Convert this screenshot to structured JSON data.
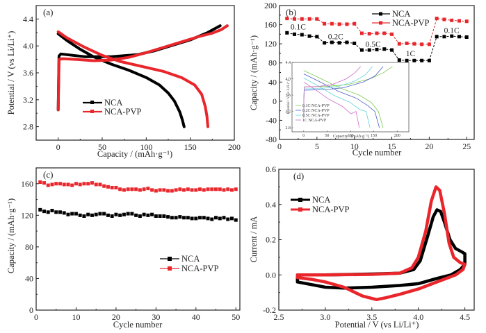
{
  "colors": {
    "NCA": "#000000",
    "NCA-PVP": "#e8262b",
    "inset": [
      "#7fc950",
      "#4a5cc4",
      "#63d3e0",
      "#cc6fc6"
    ]
  },
  "chart_data": [
    {
      "panel": "(a)",
      "type": "line",
      "title": "",
      "xlabel": "Capacity / (mAh·g⁻¹)",
      "ylabel": "Potential / V (vs Li/Li⁺)",
      "xlim": [
        -25,
        200
      ],
      "ylim": [
        2.6,
        4.6
      ],
      "xticks": [
        0,
        50,
        100,
        150,
        200
      ],
      "yticks": [
        2.8,
        3.2,
        3.6,
        4.0,
        4.4
      ],
      "legend": {
        "position": "lower-left",
        "entries": [
          "NCA",
          "NCA-PVP"
        ]
      },
      "series": [
        {
          "name": "NCA",
          "segment": "charge",
          "points": [
            [
              0,
              3.05
            ],
            [
              0.5,
              3.5
            ],
            [
              1,
              3.85
            ],
            [
              3,
              3.88
            ],
            [
              10,
              3.87
            ],
            [
              30,
              3.84
            ],
            [
              60,
              3.84
            ],
            [
              90,
              3.87
            ],
            [
              110,
              3.93
            ],
            [
              130,
              4.01
            ],
            [
              150,
              4.09
            ],
            [
              170,
              4.2
            ],
            [
              184,
              4.3
            ]
          ]
        },
        {
          "name": "NCA",
          "segment": "discharge",
          "points": [
            [
              0,
              4.18
            ],
            [
              10,
              4.08
            ],
            [
              25,
              3.95
            ],
            [
              40,
              3.84
            ],
            [
              60,
              3.73
            ],
            [
              80,
              3.64
            ],
            [
              100,
              3.53
            ],
            [
              115,
              3.42
            ],
            [
              125,
              3.3
            ],
            [
              132,
              3.18
            ],
            [
              138,
              3.02
            ],
            [
              141,
              2.9
            ],
            [
              143,
              2.8
            ]
          ]
        },
        {
          "name": "NCA-PVP",
          "segment": "charge",
          "points": [
            [
              0,
              3.05
            ],
            [
              0.5,
              3.4
            ],
            [
              1,
              3.8
            ],
            [
              5,
              3.81
            ],
            [
              20,
              3.8
            ],
            [
              40,
              3.78
            ],
            [
              60,
              3.79
            ],
            [
              80,
              3.83
            ],
            [
              100,
              3.9
            ],
            [
              120,
              3.98
            ],
            [
              140,
              4.06
            ],
            [
              160,
              4.14
            ],
            [
              175,
              4.19
            ],
            [
              185,
              4.24
            ],
            [
              192,
              4.3
            ]
          ]
        },
        {
          "name": "NCA-PVP",
          "segment": "discharge",
          "points": [
            [
              0,
              4.21
            ],
            [
              10,
              4.12
            ],
            [
              30,
              3.98
            ],
            [
              50,
              3.86
            ],
            [
              70,
              3.77
            ],
            [
              100,
              3.68
            ],
            [
              120,
              3.62
            ],
            [
              140,
              3.53
            ],
            [
              155,
              3.42
            ],
            [
              163,
              3.28
            ],
            [
              167,
              3.1
            ],
            [
              169,
              2.95
            ],
            [
              170,
              2.8
            ]
          ]
        }
      ]
    },
    {
      "panel": "(b)",
      "type": "line",
      "xlabel": "Cycle number",
      "ylabel": "Capacity / (mAh·g⁻¹)",
      "xlim": [
        0,
        26
      ],
      "ylim": [
        -80,
        200
      ],
      "xticks": [
        0,
        5,
        10,
        15,
        20,
        25
      ],
      "yticks": [
        -80,
        -40,
        0,
        40,
        80,
        120,
        160,
        200
      ],
      "legend": {
        "position": "top-right",
        "entries": [
          "NCA",
          "NCA-PVP"
        ]
      },
      "annotations": [
        {
          "text": "0.1C",
          "x": 2.5,
          "y": 150
        },
        {
          "text": "0.2C",
          "x": 7.5,
          "y": 130
        },
        {
          "text": "0.5C",
          "x": 12.5,
          "y": 114
        },
        {
          "text": "1C",
          "x": 17.5,
          "y": 94
        },
        {
          "text": "0.1C",
          "x": 23,
          "y": 143
        }
      ],
      "x": [
        1,
        2,
        3,
        4,
        5,
        6,
        7,
        8,
        9,
        10,
        11,
        12,
        13,
        14,
        15,
        16,
        17,
        18,
        19,
        20,
        21,
        22,
        23,
        24,
        25
      ],
      "series": [
        {
          "name": "NCA",
          "values": [
            143,
            140,
            139,
            136,
            135,
            122,
            123,
            122,
            123,
            121,
            107,
            107,
            108,
            109,
            107,
            86,
            85,
            85,
            85,
            85,
            135,
            135,
            136,
            135,
            134
          ]
        },
        {
          "name": "NCA-PVP",
          "values": [
            173,
            172,
            172,
            172,
            172,
            162,
            162,
            161,
            161,
            162,
            142,
            141,
            142,
            142,
            140,
            120,
            121,
            120,
            119,
            119,
            173,
            171,
            169,
            168,
            167
          ]
        }
      ],
      "inset": {
        "type": "line",
        "xlabel": "Capacity / (mAh·g⁻¹)",
        "ylabel": "Potential / V (vs Li/Li⁺)",
        "xlim": [
          -25,
          225
        ],
        "ylim": [
          2.7,
          4.4
        ],
        "xticks": [
          0,
          50,
          100,
          150,
          200
        ],
        "yticks": [
          2.8,
          3.2,
          3.6,
          4.0,
          4.4
        ],
        "legend": {
          "position": "lower-left",
          "entries": [
            "0.1C NCA-PVP",
            "0.2C NCA-PVP",
            "0.5C NCA-PVP",
            "1C NCA-PVP"
          ]
        },
        "series": [
          {
            "name": "0.1C NCA-PVP",
            "charge_end": 190,
            "discharge_end": 170,
            "plateau": 3.8,
            "disc_start": 4.2
          },
          {
            "name": "0.2C NCA-PVP",
            "charge_end": 170,
            "discharge_end": 162,
            "plateau": 3.72,
            "disc_start": 4.12
          },
          {
            "name": "0.5C NCA-PVP",
            "charge_end": 147,
            "discharge_end": 142,
            "plateau": 3.75,
            "disc_start": 4.02
          },
          {
            "name": "1C NCA-PVP",
            "charge_end": 122,
            "discharge_end": 119,
            "plateau": 3.8,
            "disc_start": 3.92
          }
        ]
      }
    },
    {
      "panel": "(c)",
      "type": "line",
      "xlabel": "Cycle number",
      "ylabel": "Capacity / (mAh·g⁻¹)",
      "xlim": [
        0,
        51
      ],
      "ylim": [
        0,
        180
      ],
      "xticks": [
        0,
        10,
        20,
        30,
        40,
        50
      ],
      "yticks": [
        0,
        40,
        80,
        120,
        160
      ],
      "legend": {
        "position": "center-right",
        "entries": [
          "NCA",
          "NCA-PVP"
        ]
      },
      "x": [
        1,
        2,
        3,
        4,
        5,
        6,
        7,
        8,
        9,
        10,
        11,
        12,
        13,
        14,
        15,
        16,
        17,
        18,
        19,
        20,
        21,
        22,
        23,
        24,
        25,
        26,
        27,
        28,
        29,
        30,
        31,
        32,
        33,
        34,
        35,
        36,
        37,
        38,
        39,
        40,
        41,
        42,
        43,
        44,
        45,
        46,
        47,
        48,
        49,
        50
      ],
      "series": [
        {
          "name": "NCA",
          "values": [
            127,
            125,
            124,
            126,
            124,
            124,
            123,
            121,
            122,
            122,
            120,
            119,
            121,
            120,
            121,
            122,
            122,
            120,
            119,
            121,
            120,
            121,
            122,
            122,
            120,
            119,
            121,
            120,
            121,
            119,
            119,
            119,
            118,
            117,
            117,
            118,
            117,
            117,
            116,
            116,
            117,
            117,
            116,
            115,
            117,
            116,
            117,
            115,
            116,
            114
          ]
        },
        {
          "name": "NCA-PVP",
          "values": [
            162,
            161,
            158,
            159,
            160,
            160,
            159,
            159,
            158,
            160,
            159,
            160,
            160,
            161,
            159,
            159,
            157,
            156,
            155,
            155,
            153,
            152,
            153,
            153,
            153,
            152,
            153,
            154,
            152,
            151,
            152,
            152,
            151,
            151,
            152,
            153,
            152,
            153,
            152,
            152,
            153,
            152,
            153,
            153,
            153,
            153,
            152,
            153,
            152,
            153
          ]
        }
      ]
    },
    {
      "panel": "(d)",
      "type": "line",
      "xlabel": "Potential / V (vs Li/Li⁺)",
      "ylabel": "Current / mA",
      "xlim": [
        2.5,
        4.6
      ],
      "ylim": [
        -0.2,
        0.6
      ],
      "xticks": [
        2.5,
        3.0,
        3.5,
        4.0,
        4.5
      ],
      "yticks": [
        -0.2,
        0.0,
        0.2,
        0.4,
        0.6
      ],
      "legend": {
        "position": "top-left",
        "entries": [
          "NCA",
          "NCA-PVP"
        ]
      },
      "series": [
        {
          "name": "NCA",
          "points": [
            [
              2.7,
              0.0
            ],
            [
              3.0,
              0.0
            ],
            [
              3.5,
              0.005
            ],
            [
              3.8,
              0.01
            ],
            [
              3.95,
              0.03
            ],
            [
              4.02,
              0.08
            ],
            [
              4.1,
              0.22
            ],
            [
              4.16,
              0.33
            ],
            [
              4.2,
              0.37
            ],
            [
              4.24,
              0.36
            ],
            [
              4.28,
              0.3
            ],
            [
              4.34,
              0.2
            ],
            [
              4.4,
              0.15
            ],
            [
              4.47,
              0.13
            ],
            [
              4.5,
              0.12
            ],
            [
              4.5,
              0.06
            ],
            [
              4.45,
              0.03
            ],
            [
              4.35,
              -0.0
            ],
            [
              4.2,
              -0.02
            ],
            [
              4.0,
              -0.05
            ],
            [
              3.8,
              -0.06
            ],
            [
              3.5,
              -0.07
            ],
            [
              3.2,
              -0.075
            ],
            [
              3.0,
              -0.07
            ],
            [
              2.85,
              -0.055
            ],
            [
              2.7,
              -0.04
            ]
          ]
        },
        {
          "name": "NCA-PVP",
          "points": [
            [
              2.7,
              0.0
            ],
            [
              3.0,
              0.0
            ],
            [
              3.5,
              0.003
            ],
            [
              3.8,
              0.01
            ],
            [
              3.93,
              0.04
            ],
            [
              4.0,
              0.1
            ],
            [
              4.08,
              0.25
            ],
            [
              4.14,
              0.42
            ],
            [
              4.19,
              0.5
            ],
            [
              4.23,
              0.48
            ],
            [
              4.28,
              0.35
            ],
            [
              4.33,
              0.18
            ],
            [
              4.38,
              0.1
            ],
            [
              4.45,
              0.07
            ],
            [
              4.5,
              0.06
            ],
            [
              4.48,
              0.03
            ],
            [
              4.4,
              -0.0
            ],
            [
              4.2,
              -0.04
            ],
            [
              4.0,
              -0.08
            ],
            [
              3.8,
              -0.11
            ],
            [
              3.65,
              -0.13
            ],
            [
              3.55,
              -0.14
            ],
            [
              3.4,
              -0.12
            ],
            [
              3.2,
              -0.07
            ],
            [
              3.0,
              -0.04
            ],
            [
              2.85,
              -0.025
            ],
            [
              2.7,
              -0.015
            ]
          ]
        }
      ]
    }
  ]
}
